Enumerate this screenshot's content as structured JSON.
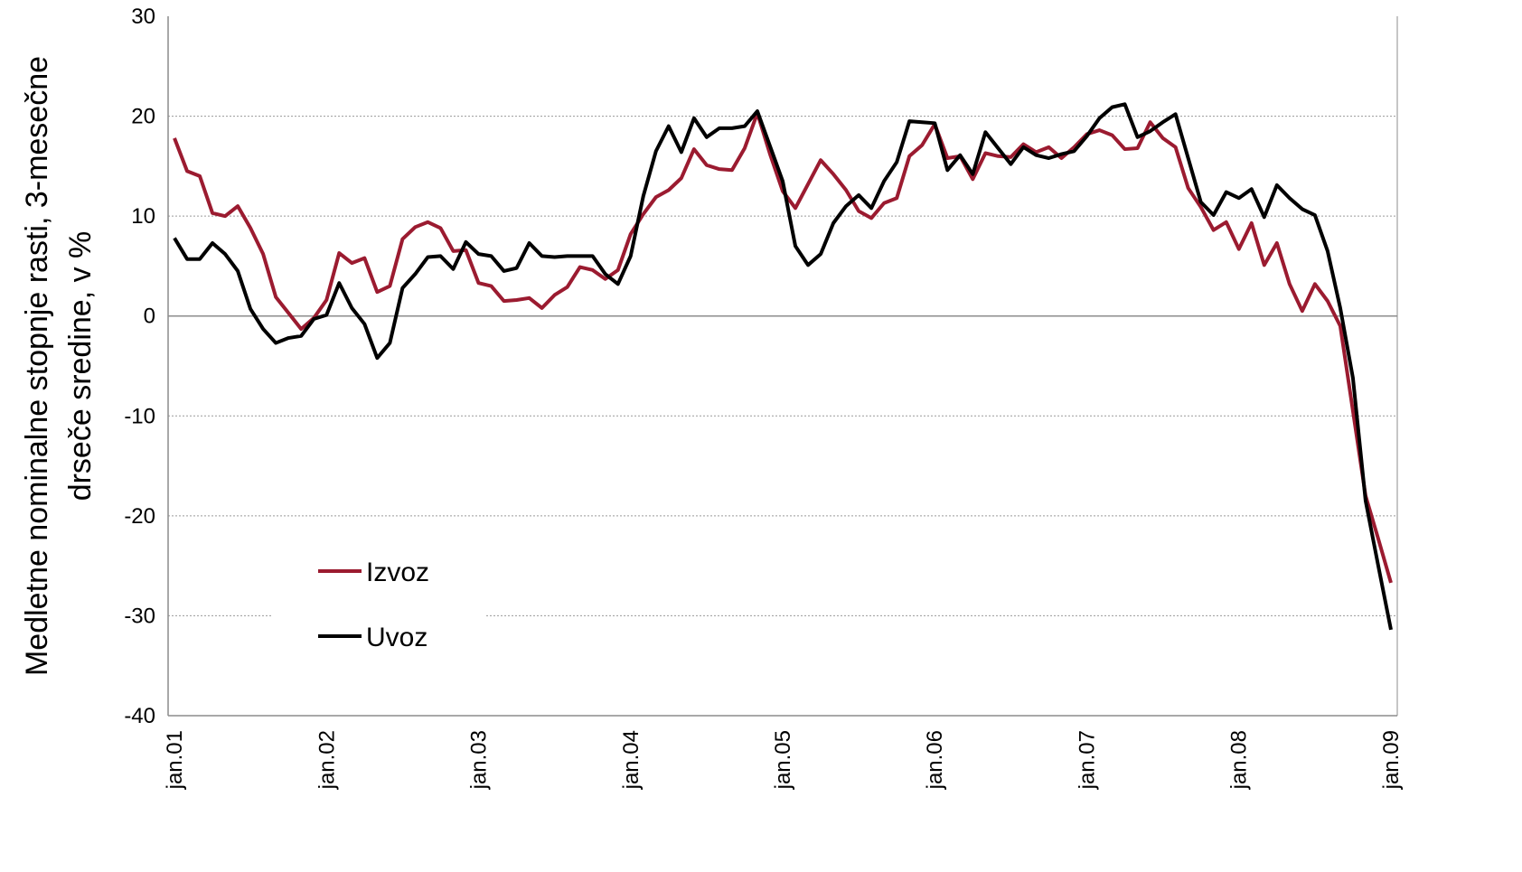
{
  "chart_data": {
    "type": "line",
    "y_label": [
      "Medletne nominalne stopnje rasti, 3-mesečne",
      "drseče sredine, v %"
    ],
    "categories": [
      "jan.01",
      null,
      null,
      null,
      null,
      null,
      null,
      null,
      null,
      null,
      null,
      null,
      "jan.02",
      null,
      null,
      null,
      null,
      null,
      null,
      null,
      null,
      null,
      null,
      null,
      "jan.03",
      null,
      null,
      null,
      null,
      null,
      null,
      null,
      null,
      null,
      null,
      null,
      "jan.04",
      null,
      null,
      null,
      null,
      null,
      null,
      null,
      null,
      null,
      null,
      null,
      "jan.05",
      null,
      null,
      null,
      null,
      null,
      null,
      null,
      null,
      null,
      null,
      null,
      "jan.06",
      null,
      null,
      null,
      null,
      null,
      null,
      null,
      null,
      null,
      null,
      null,
      "jan.07",
      null,
      null,
      null,
      null,
      null,
      null,
      null,
      null,
      null,
      null,
      null,
      "jan.08",
      null,
      null,
      null,
      null,
      null,
      null,
      null,
      null,
      null,
      null,
      null,
      "jan.09"
    ],
    "series": [
      {
        "name": "Izvoz",
        "color": "#9b1b30",
        "values": [
          17.8,
          14.5,
          14.0,
          10.3,
          10.0,
          11.0,
          8.8,
          6.2,
          1.9,
          0.3,
          -1.3,
          -0.2,
          1.6,
          6.3,
          5.3,
          5.8,
          2.4,
          3.0,
          7.7,
          8.9,
          9.4,
          8.8,
          6.5,
          6.6,
          3.3,
          3.0,
          1.5,
          1.6,
          1.8,
          0.8,
          2.1,
          2.9,
          4.9,
          4.6,
          3.7,
          4.6,
          8.2,
          10.2,
          11.9,
          12.6,
          13.8,
          16.7,
          15.1,
          14.7,
          14.6,
          16.8,
          20.3,
          16.2,
          12.5,
          10.8,
          13.2,
          15.6,
          14.2,
          12.6,
          10.5,
          9.8,
          11.3,
          11.8,
          16.0,
          17.1,
          19.2,
          15.8,
          16.0,
          13.7,
          16.3,
          16.0,
          15.9,
          17.2,
          16.4,
          16.9,
          15.8,
          16.9,
          18.2,
          18.6,
          18.1,
          16.7,
          16.8,
          19.4,
          17.8,
          16.9,
          12.8,
          10.9,
          8.6,
          9.4,
          6.7,
          9.3,
          5.1,
          7.3,
          3.2,
          0.5,
          3.2,
          1.5,
          -1.0,
          -9.5,
          -18.0,
          -22.3,
          -26.7
        ]
      },
      {
        "name": "Uvoz",
        "color": "#000000",
        "values": [
          7.8,
          5.7,
          5.7,
          7.3,
          6.2,
          4.5,
          0.7,
          -1.3,
          -2.7,
          -2.2,
          -2.0,
          -0.3,
          0.1,
          3.3,
          0.8,
          -0.8,
          -4.2,
          -2.7,
          2.8,
          4.2,
          5.9,
          6.0,
          4.7,
          7.4,
          6.2,
          6.0,
          4.5,
          4.8,
          7.3,
          6.0,
          5.9,
          6.0,
          6.0,
          6.0,
          4.2,
          3.2,
          6.0,
          12.0,
          16.5,
          19.0,
          16.4,
          19.8,
          17.9,
          18.8,
          18.8,
          19.0,
          20.5,
          17.0,
          13.5,
          7.0,
          5.1,
          6.2,
          9.3,
          11.0,
          12.1,
          10.8,
          13.5,
          15.4,
          19.5,
          19.4,
          19.3,
          14.6,
          16.1,
          14.2,
          18.4,
          16.8,
          15.2,
          16.9,
          16.1,
          15.8,
          16.2,
          16.5,
          18.0,
          19.8,
          20.9,
          21.2,
          17.9,
          18.5,
          19.4,
          20.2,
          15.8,
          11.4,
          10.1,
          12.4,
          11.8,
          12.7,
          9.9,
          13.1,
          11.8,
          10.7,
          10.1,
          6.5,
          0.8,
          -6.2,
          -18.5,
          -25.0,
          -31.4
        ]
      }
    ],
    "ylim": [
      -40,
      30
    ],
    "yticks": [
      -40,
      -30,
      -20,
      -10,
      0,
      10,
      20,
      30
    ],
    "grid": true,
    "legend": "lower-left"
  }
}
